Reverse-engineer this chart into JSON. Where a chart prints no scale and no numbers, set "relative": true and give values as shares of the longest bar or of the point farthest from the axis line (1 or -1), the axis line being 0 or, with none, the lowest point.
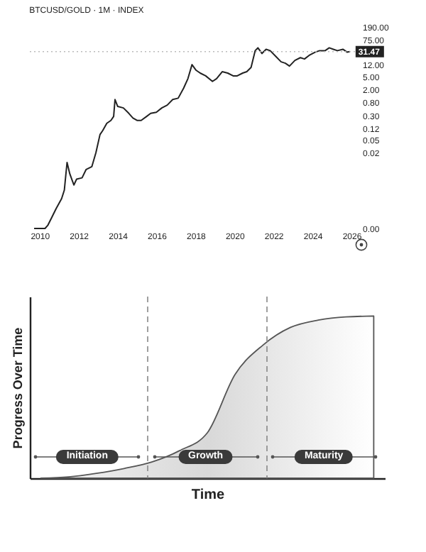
{
  "chart_data": [
    {
      "type": "line",
      "title": "BTCUSD/GOLD · 1M · INDEX",
      "color": "#222222",
      "log": true,
      "x": [
        2009.72,
        2010.28,
        2010.42,
        2010.63,
        2010.85,
        2011.13,
        2011.27,
        2011.41,
        2011.55,
        2011.76,
        2011.9,
        2012.18,
        2012.39,
        2012.68,
        2012.89,
        2013.1,
        2013.24,
        2013.45,
        2013.66,
        2013.8,
        2013.87,
        2014.01,
        2014.3,
        2014.58,
        2014.79,
        2015.0,
        2015.21,
        2015.49,
        2015.7,
        2015.99,
        2016.27,
        2016.55,
        2016.83,
        2017.11,
        2017.39,
        2017.61,
        2017.82,
        2018.03,
        2018.24,
        2018.52,
        2018.87,
        2019.08,
        2019.37,
        2019.65,
        2019.93,
        2020.14,
        2020.42,
        2020.63,
        2020.85,
        2021.06,
        2021.2,
        2021.41,
        2021.62,
        2021.83,
        2022.11,
        2022.39,
        2022.61,
        2022.82,
        2023.1,
        2023.38,
        2023.59,
        2023.87,
        2024.15,
        2024.37,
        2024.65,
        2024.86,
        2025.07,
        2025.28,
        2025.56,
        2025.77,
        2025.92
      ],
      "values": [
        8e-05,
        8e-05,
        0.0001,
        0.00018,
        0.00034,
        0.0007,
        0.0013,
        0.0098,
        0.0043,
        0.0019,
        0.0029,
        0.0032,
        0.0059,
        0.0072,
        0.02,
        0.075,
        0.1,
        0.17,
        0.21,
        0.28,
        0.96,
        0.58,
        0.52,
        0.35,
        0.25,
        0.21,
        0.21,
        0.28,
        0.35,
        0.38,
        0.52,
        0.64,
        0.96,
        1.06,
        2.2,
        4.4,
        12.2,
        8.1,
        6.6,
        5.4,
        3.6,
        4.4,
        7.3,
        6.6,
        5.4,
        5.4,
        6.6,
        7.3,
        10.0,
        33.8,
        41.5,
        27.6,
        37.4,
        33.8,
        22.5,
        15.0,
        13.5,
        11.0,
        16.6,
        20.3,
        18.4,
        24.9,
        30.5,
        33.8,
        33.8,
        41.5,
        37.4,
        33.8,
        37.4,
        30.5,
        31.47
      ],
      "xlim": [
        2009.5,
        2026.4
      ],
      "xticks": [
        2010,
        2012,
        2014,
        2016,
        2018,
        2020,
        2022,
        2024,
        2026
      ],
      "ylim": [
        8e-05,
        190
      ],
      "yticks": [
        {
          "value": 8e-05,
          "label": "0.00"
        },
        {
          "value": 0.02,
          "label": "0.02"
        },
        {
          "value": 0.05,
          "label": "0.05"
        },
        {
          "value": 0.12,
          "label": "0.12"
        },
        {
          "value": 0.3,
          "label": "0.30"
        },
        {
          "value": 0.8,
          "label": "0.80"
        },
        {
          "value": 2,
          "label": "2.00"
        },
        {
          "value": 5,
          "label": "5.00"
        },
        {
          "value": 12,
          "label": "12.00"
        },
        {
          "value": 75,
          "label": "75.00"
        },
        {
          "value": 190,
          "label": "190.00"
        }
      ],
      "ref_lines": [
        {
          "axis": "y",
          "value": 31.47,
          "line_style": "dotted",
          "color": "#bbbbbb"
        }
      ],
      "annotations": [
        {
          "text": "31.47",
          "x": 2025.92,
          "y": 31.47
        }
      ]
    },
    {
      "type": "area",
      "relative": true,
      "color": "#555555",
      "xlabel": "Time",
      "ylabel": "Progress Over Time",
      "categories": [
        null,
        null,
        null,
        null,
        null,
        null,
        null,
        null,
        null,
        null,
        null,
        null,
        null
      ],
      "values": [
        0,
        0.008,
        0.03,
        0.06,
        0.1,
        0.17,
        0.28,
        0.64,
        0.82,
        0.93,
        0.975,
        0.995,
        1
      ],
      "annotations": [
        "Initiation",
        "Growth",
        "Maturity"
      ]
    }
  ]
}
